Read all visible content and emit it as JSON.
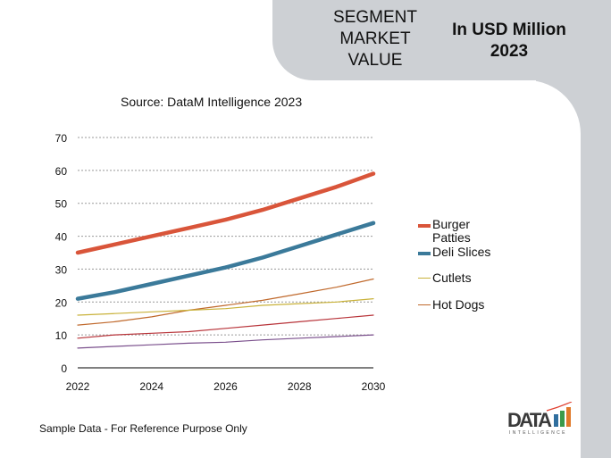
{
  "header": {
    "segment_title": "SEGMENT MARKET VALUE",
    "unit_title": "In USD Million 2023"
  },
  "source": "Source: DataM Intelligence  2023",
  "footer": "Sample Data - For Reference Purpose Only",
  "logo": {
    "text": "DATA",
    "subtext": "INTELLIGENCE"
  },
  "chart_data": {
    "type": "line",
    "x": [
      2022,
      2023,
      2024,
      2025,
      2026,
      2027,
      2028,
      2029,
      2030
    ],
    "x_ticks": [
      "2022",
      "2024",
      "2026",
      "2028",
      "2030"
    ],
    "y_ticks": [
      "0",
      "10",
      "20",
      "30",
      "40",
      "50",
      "60",
      "70"
    ],
    "ylim": [
      0,
      70
    ],
    "grid": "horizontal dotted",
    "legend_position": "right",
    "series": [
      {
        "name": "Burger Patties",
        "color": "#d9553a",
        "width": "thick",
        "values": [
          35,
          37.5,
          40,
          42.5,
          45,
          48,
          51.5,
          55,
          59
        ]
      },
      {
        "name": "Deli Slices",
        "color": "#3b7a9a",
        "width": "thick",
        "values": [
          21,
          23,
          25.5,
          28,
          30.5,
          33.5,
          37,
          40.5,
          44
        ]
      },
      {
        "name": "Cutlets",
        "color": "#c9b23a",
        "width": "thin",
        "values": [
          16,
          16.5,
          17,
          17.5,
          18,
          19,
          19.5,
          20,
          21
        ]
      },
      {
        "name": "Hot Dogs",
        "color": "#c0692c",
        "width": "thin",
        "values": [
          13,
          14,
          15.5,
          17.5,
          19,
          20.5,
          22.5,
          24.5,
          27
        ]
      },
      {
        "color": "#b8343a",
        "width": "thin",
        "values": [
          9,
          10,
          10.5,
          11,
          12,
          13,
          14,
          15,
          16
        ]
      },
      {
        "color": "#7a4f8c",
        "width": "thin",
        "values": [
          6,
          6.5,
          7,
          7.5,
          7.8,
          8.5,
          9,
          9.5,
          10
        ]
      }
    ]
  }
}
